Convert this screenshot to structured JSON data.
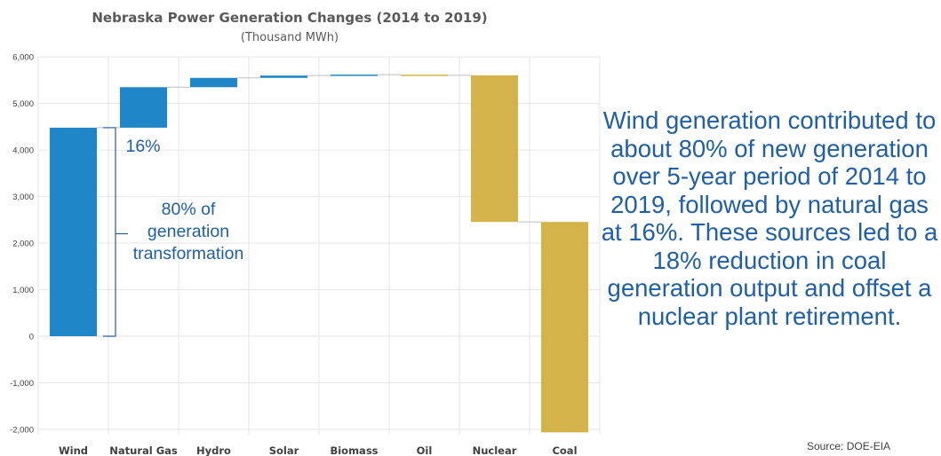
{
  "chart_data": {
    "type": "waterfall",
    "title": "Nebraska Power Generation Changes (2014 to 2019)",
    "subtitle": "(Thousand MWh)",
    "categories": [
      "Wind",
      "Natural Gas",
      "Hydro",
      "Solar",
      "Biomass",
      "Oil",
      "Nuclear",
      "Coal"
    ],
    "values": [
      4480,
      870,
      200,
      50,
      20,
      -15,
      -3150,
      -4520
    ],
    "ylim": [
      -2100,
      6000
    ],
    "yticks": [
      -2000,
      -1000,
      0,
      1000,
      2000,
      3000,
      4000,
      5000,
      6000
    ],
    "ytick_labels": [
      "-2,000",
      "-1,000",
      "0",
      "1,000",
      "2,000",
      "3,000",
      "4,000",
      "5,000",
      "6,000"
    ],
    "grid": true,
    "colors": {
      "increase": "#1f86c8",
      "decrease": "#d4b44a"
    },
    "annotations": {
      "natural_gas_share": "16%",
      "wind_share_lines": [
        "80% of",
        "generation",
        "transformation"
      ]
    }
  },
  "side_text": "Wind generation contributed to about 80% of new generation over 5-year period of 2014 to 2019, followed by natural gas at 16%. These sources led to a 18% reduction in coal generation output and offset a nuclear plant retirement.",
  "source": "Source: DOE-EIA"
}
